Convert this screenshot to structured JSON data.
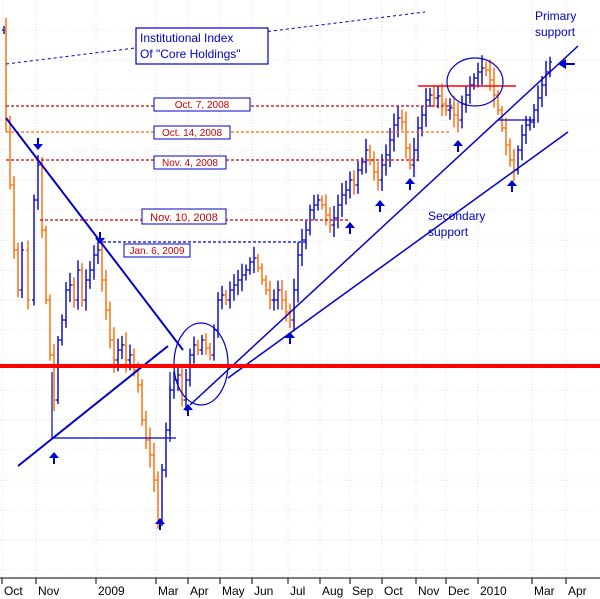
{
  "chart_data": {
    "type": "ohlc",
    "title": "Institutional Index Of \"Core Holdings\"",
    "title_lines": [
      "Institutional Index",
      "Of \"Core Holdings\""
    ],
    "x_tick_labels": [
      "Oct",
      "Nov",
      "2009",
      "Mar",
      "Apr",
      "May",
      "Jun",
      "Jul",
      "Aug",
      "Sep",
      "Oct",
      "Nov",
      "Dec",
      "2010",
      "Mar",
      "Apr"
    ],
    "grid": true,
    "colors": {
      "up_bar": "#0000cc",
      "down_bar": "#ff6600",
      "trendline": "#0000cc",
      "support_line": "#ff0000",
      "date_line": "#cc0000",
      "grid": "#c8c8c8"
    },
    "date_markers": [
      {
        "label": "Oct. 7, 2008"
      },
      {
        "label": "Oct. 14, 2008"
      },
      {
        "label": "Nov. 4, 2008"
      },
      {
        "label": "Nov. 10, 2008"
      },
      {
        "label": "Jan. 6, 2009"
      }
    ],
    "annotations": {
      "primary_support": [
        "Primary",
        "support"
      ],
      "secondary_support": [
        "Secondary",
        "support"
      ]
    }
  }
}
